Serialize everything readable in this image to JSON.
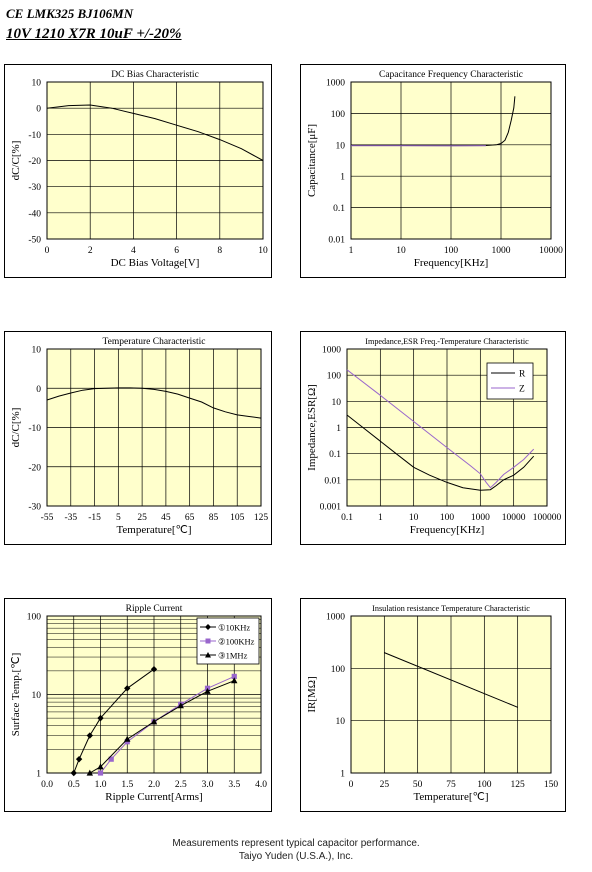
{
  "header": {
    "part": "CE LMK325 BJ106MN",
    "spec": "10V  1210  X7R  10uF +/-20%"
  },
  "footer": {
    "line1": "Measurements represent typical capacitor performance.",
    "line2": "Taiyo Yuden (U.S.A.), Inc."
  },
  "colors": {
    "plot_bg": "#ffffcc",
    "grid": "#000000",
    "series_black": "#000000",
    "series_purple": "#9966cc"
  },
  "chart_data": [
    {
      "id": "dcbias",
      "type": "line",
      "title": "DC Bias Characteristic",
      "xlabel": "DC Bias Voltage[V]",
      "ylabel": "dC/C[%]",
      "xscale": "linear",
      "yscale": "linear",
      "xlim": [
        0,
        10
      ],
      "ylim": [
        -50,
        10
      ],
      "xticks": [
        0,
        2,
        4,
        6,
        8,
        10
      ],
      "xtick_labels": [
        "0",
        "2",
        "4",
        "6",
        "8",
        "10"
      ],
      "yticks": [
        10,
        0,
        -10,
        -20,
        -30,
        -40,
        -50
      ],
      "ytick_labels": [
        "10",
        "0",
        "-10",
        "-20",
        "-30",
        "-40",
        "-50"
      ],
      "grid": true,
      "series": [
        {
          "color": "black",
          "points": [
            [
              0,
              0
            ],
            [
              1,
              1
            ],
            [
              2,
              1.2
            ],
            [
              3,
              0
            ],
            [
              4,
              -2
            ],
            [
              5,
              -4
            ],
            [
              6,
              -6.5
            ],
            [
              7,
              -9
            ],
            [
              8,
              -12
            ],
            [
              9,
              -15.5
            ],
            [
              10,
              -20
            ]
          ]
        }
      ]
    },
    {
      "id": "capfreq",
      "type": "line",
      "title": "Capacitance Frequency Characteristic",
      "xlabel": "Frequency[KHz]",
      "ylabel": "Capacitance[μF]",
      "xscale": "log",
      "yscale": "log",
      "xlim": [
        1,
        10000
      ],
      "ylim": [
        0.01,
        1000
      ],
      "xticks": [
        1,
        10,
        100,
        1000,
        10000
      ],
      "xtick_labels": [
        "1",
        "10",
        "100",
        "1000",
        "10000"
      ],
      "yticks": [
        1000,
        100,
        10,
        1,
        0.1,
        0.01
      ],
      "ytick_labels": [
        "1000",
        "100",
        "10",
        "1",
        "0.1",
        "0.01"
      ],
      "grid": true,
      "series": [
        {
          "color": "black",
          "points": [
            [
              1,
              9.5
            ],
            [
              10,
              9.5
            ],
            [
              100,
              9.4
            ],
            [
              500,
              9.5
            ],
            [
              800,
              10
            ],
            [
              1000,
              11
            ],
            [
              1200,
              14
            ],
            [
              1400,
              25
            ],
            [
              1600,
              60
            ],
            [
              1800,
              150
            ],
            [
              1900,
              350
            ]
          ]
        },
        {
          "color": "purple",
          "points": [
            [
              1,
              9.3
            ],
            [
              10,
              9.3
            ],
            [
              100,
              9.2
            ],
            [
              500,
              9.3
            ]
          ]
        }
      ]
    },
    {
      "id": "temp",
      "type": "line",
      "title": "Temperature Characteristic",
      "xlabel": "Temperature[℃]",
      "ylabel": "dC/C[%]",
      "xscale": "linear",
      "yscale": "linear",
      "xlim": [
        -55,
        125
      ],
      "ylim": [
        -30,
        10
      ],
      "xticks": [
        -55,
        -35,
        -15,
        5,
        25,
        45,
        65,
        85,
        105,
        125
      ],
      "xtick_labels": [
        "-55",
        "-35",
        "-15",
        "5",
        "25",
        "45",
        "65",
        "85",
        "105",
        "125"
      ],
      "yticks": [
        10,
        0,
        -10,
        -20,
        -30
      ],
      "ytick_labels": [
        "10",
        "0",
        "-10",
        "-20",
        "-30"
      ],
      "grid": true,
      "series": [
        {
          "color": "black",
          "points": [
            [
              -55,
              -3
            ],
            [
              -45,
              -2
            ],
            [
              -35,
              -1.2
            ],
            [
              -25,
              -0.5
            ],
            [
              -15,
              -0.1
            ],
            [
              -5,
              0
            ],
            [
              5,
              0.1
            ],
            [
              15,
              0.1
            ],
            [
              25,
              0
            ],
            [
              35,
              -0.3
            ],
            [
              45,
              -0.8
            ],
            [
              55,
              -1.5
            ],
            [
              65,
              -2.5
            ],
            [
              75,
              -3.5
            ],
            [
              85,
              -5
            ],
            [
              95,
              -6
            ],
            [
              105,
              -6.8
            ],
            [
              115,
              -7.2
            ],
            [
              125,
              -7.6
            ]
          ]
        }
      ]
    },
    {
      "id": "impedance",
      "type": "line",
      "title": "Impedance,ESR Freq.-Temperature Characteristic",
      "xlabel": "Frequency[KHz]",
      "ylabel": "Impedance,ESR[Ω]",
      "xscale": "log",
      "yscale": "log",
      "xlim": [
        0.1,
        100000
      ],
      "ylim": [
        0.001,
        1000
      ],
      "xticks": [
        0.1,
        1,
        10,
        100,
        1000,
        10000,
        100000
      ],
      "xtick_labels": [
        "0.1",
        "1",
        "10",
        "100",
        "1000",
        "10000",
        "100000"
      ],
      "yticks": [
        1000,
        100,
        10,
        1,
        0.1,
        0.01,
        0.001
      ],
      "ytick_labels": [
        "1000",
        "100",
        "10",
        "1",
        "0.1",
        "0.01",
        "0.001"
      ],
      "grid": true,
      "legend": "top-right",
      "series": [
        {
          "name": "R",
          "color": "black",
          "points": [
            [
              0.1,
              3
            ],
            [
              0.3,
              1
            ],
            [
              1,
              0.3
            ],
            [
              3,
              0.1
            ],
            [
              10,
              0.03
            ],
            [
              30,
              0.015
            ],
            [
              100,
              0.008
            ],
            [
              300,
              0.005
            ],
            [
              1000,
              0.004
            ],
            [
              2000,
              0.0042
            ],
            [
              3000,
              0.006
            ],
            [
              5000,
              0.01
            ],
            [
              10000,
              0.015
            ],
            [
              20000,
              0.03
            ],
            [
              40000,
              0.08
            ]
          ]
        },
        {
          "name": "Z",
          "color": "purple",
          "points": [
            [
              0.1,
              160
            ],
            [
              1,
              17
            ],
            [
              10,
              1.7
            ],
            [
              100,
              0.17
            ],
            [
              500,
              0.035
            ],
            [
              1000,
              0.017
            ],
            [
              1500,
              0.008
            ],
            [
              2000,
              0.005
            ],
            [
              3000,
              0.008
            ],
            [
              5000,
              0.016
            ],
            [
              10000,
              0.03
            ],
            [
              20000,
              0.06
            ],
            [
              40000,
              0.15
            ]
          ]
        }
      ]
    },
    {
      "id": "ripple",
      "type": "line",
      "title": "Ripple Current",
      "xlabel": "Ripple Current[Arms]",
      "ylabel": "Surface Temp.[℃]",
      "xscale": "linear",
      "yscale": "log",
      "xlim": [
        0,
        4.0
      ],
      "ylim": [
        1,
        100
      ],
      "xticks": [
        0,
        0.5,
        1,
        1.5,
        2,
        2.5,
        3,
        3.5,
        4
      ],
      "xtick_labels": [
        "0.0",
        "0.5",
        "1.0",
        "1.5",
        "2.0",
        "2.5",
        "3.0",
        "3.5",
        "4.0"
      ],
      "yticks": [
        100,
        10,
        1
      ],
      "ytick_labels": [
        "100",
        "10",
        "1"
      ],
      "grid": true,
      "legend": "top-right",
      "series": [
        {
          "name": "①10KHz",
          "color": "black",
          "marker": "diamond",
          "points": [
            [
              0.5,
              1
            ],
            [
              0.6,
              1.5
            ],
            [
              0.8,
              3
            ],
            [
              1.0,
              5
            ],
            [
              1.5,
              12
            ],
            [
              2.0,
              21
            ]
          ]
        },
        {
          "name": "②100KHz",
          "color": "purple",
          "marker": "square",
          "points": [
            [
              1.0,
              1
            ],
            [
              1.2,
              1.5
            ],
            [
              1.5,
              2.5
            ],
            [
              2.0,
              4.5
            ],
            [
              2.5,
              7.5
            ],
            [
              3.0,
              12
            ],
            [
              3.5,
              17
            ]
          ]
        },
        {
          "name": "③1MHz",
          "color": "black",
          "marker": "triangle",
          "points": [
            [
              0.8,
              1
            ],
            [
              1.0,
              1.2
            ],
            [
              1.5,
              2.7
            ],
            [
              2.0,
              4.5
            ],
            [
              2.5,
              7.2
            ],
            [
              3.0,
              11
            ],
            [
              3.5,
              15
            ]
          ]
        }
      ]
    },
    {
      "id": "insulation",
      "type": "line",
      "title": "Insulation resistance Temperature Characteristic",
      "xlabel": "Temperature[℃]",
      "ylabel": "IR[MΩ]",
      "xscale": "linear",
      "yscale": "log",
      "xlim": [
        0,
        150
      ],
      "ylim": [
        1,
        1000
      ],
      "xticks": [
        0,
        25,
        50,
        75,
        100,
        125,
        150
      ],
      "xtick_labels": [
        "0",
        "25",
        "50",
        "75",
        "100",
        "125",
        "150"
      ],
      "yticks": [
        1000,
        100,
        10,
        1
      ],
      "ytick_labels": [
        "1000",
        "100",
        "10",
        "1"
      ],
      "grid": true,
      "series": [
        {
          "color": "black",
          "points": [
            [
              25,
              200
            ],
            [
              125,
              18
            ]
          ]
        }
      ]
    }
  ]
}
